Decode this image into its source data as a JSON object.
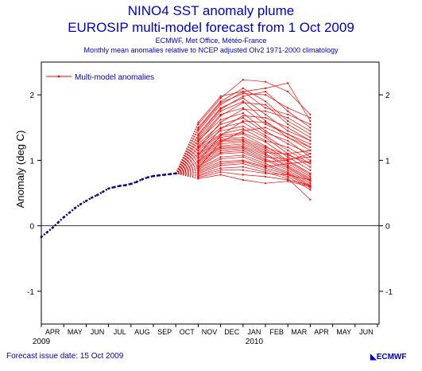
{
  "header": {
    "line1": "NINO4 SST anomaly plume",
    "line2": "EUROSIP  multi-model forecast from 1 Oct 2009",
    "line3": "ECMWF, Met Office, Météo-France",
    "line4": "Monthly mean anomalies relative to NCEP adjusted OIv2 1971-2000 climatology"
  },
  "footer": {
    "issue_date": "Forecast issue date: 15 Oct 2009",
    "logo": "ECMWF"
  },
  "colors": {
    "text": "#0000cc",
    "observed": "#000080",
    "forecast": "#ff0000",
    "axis": "#000000"
  },
  "chart_data": {
    "type": "line",
    "ylabel": "Anomaly (deg C)",
    "ylim": [
      -1.5,
      2.5
    ],
    "yticks": [
      -1,
      0,
      1,
      2
    ],
    "month_labels": [
      "APR",
      "MAY",
      "JUN",
      "JUL",
      "AUG",
      "SEP",
      "OCT",
      "NOV",
      "DEC",
      "JAN",
      "FEB",
      "MAR",
      "APR",
      "MAY",
      "JUN"
    ],
    "year_labels": [
      {
        "label": "2009",
        "month_index": 0
      },
      {
        "label": "2010",
        "month_index": 9.5
      }
    ],
    "xlim_months": [
      0,
      15.5
    ],
    "legend": {
      "label": "Multi-model anomalies",
      "position": "top-left"
    },
    "observed": {
      "x": [
        0,
        0.25,
        0.5,
        0.75,
        1,
        1.25,
        1.5,
        1.75,
        2,
        2.25,
        2.5,
        2.75,
        3,
        3.25,
        3.5,
        3.75,
        4,
        4.25,
        4.5,
        4.75,
        5,
        5.25,
        5.5,
        5.75,
        6
      ],
      "y": [
        -0.17,
        -0.1,
        -0.03,
        0.05,
        0.13,
        0.2,
        0.27,
        0.33,
        0.38,
        0.43,
        0.47,
        0.52,
        0.57,
        0.59,
        0.61,
        0.62,
        0.64,
        0.67,
        0.71,
        0.74,
        0.76,
        0.77,
        0.78,
        0.79,
        0.8
      ]
    },
    "forecast": {
      "start_x": 6,
      "start_y": 0.8,
      "x": [
        7,
        8,
        9,
        10,
        11,
        12
      ],
      "members": [
        [
          1.55,
          1.95,
          2.23,
          2.2,
          2.05,
          1.7
        ],
        [
          1.5,
          1.9,
          2.1,
          1.9,
          1.6,
          1.4
        ],
        [
          1.45,
          1.85,
          2.05,
          1.8,
          1.7,
          1.55
        ],
        [
          1.4,
          1.8,
          1.95,
          1.7,
          1.45,
          1.3
        ],
        [
          1.35,
          1.75,
          1.9,
          1.6,
          1.35,
          1.2
        ],
        [
          1.32,
          1.7,
          1.8,
          1.55,
          1.4,
          1.25
        ],
        [
          1.3,
          1.62,
          1.72,
          1.45,
          1.25,
          1.1
        ],
        [
          1.25,
          1.55,
          1.65,
          1.42,
          1.3,
          1.05
        ],
        [
          1.22,
          1.5,
          1.58,
          1.38,
          1.15,
          0.95
        ],
        [
          1.2,
          1.45,
          1.52,
          1.35,
          1.1,
          0.9
        ],
        [
          1.18,
          1.4,
          1.48,
          1.3,
          1.2,
          1.0
        ],
        [
          1.15,
          1.38,
          1.42,
          1.28,
          1.05,
          0.85
        ],
        [
          1.12,
          1.35,
          1.4,
          1.22,
          1.0,
          0.8
        ],
        [
          1.1,
          1.32,
          1.35,
          1.2,
          1.08,
          0.95
        ],
        [
          1.08,
          1.3,
          1.32,
          1.18,
          0.98,
          0.78
        ],
        [
          1.05,
          1.28,
          1.3,
          1.15,
          0.95,
          0.75
        ],
        [
          1.03,
          1.25,
          1.28,
          1.12,
          1.1,
          1.15
        ],
        [
          1.0,
          1.22,
          1.25,
          1.1,
          0.92,
          0.72
        ],
        [
          0.98,
          1.2,
          1.22,
          1.08,
          0.9,
          0.7
        ],
        [
          0.96,
          1.18,
          1.2,
          1.05,
          1.02,
          1.05
        ],
        [
          0.94,
          1.15,
          1.18,
          1.02,
          0.88,
          0.68
        ],
        [
          0.92,
          1.12,
          1.15,
          1.0,
          0.85,
          0.65
        ],
        [
          0.9,
          1.1,
          1.12,
          0.98,
          1.0,
          1.1
        ],
        [
          0.88,
          1.05,
          1.08,
          0.95,
          0.82,
          0.62
        ],
        [
          0.86,
          1.02,
          1.05,
          0.92,
          0.8,
          0.6
        ],
        [
          0.84,
          0.98,
          1.0,
          0.9,
          0.95,
          0.98
        ],
        [
          0.82,
          0.95,
          0.98,
          0.88,
          0.78,
          0.58
        ],
        [
          0.8,
          0.92,
          0.95,
          0.85,
          0.75,
          0.55
        ],
        [
          0.78,
          0.88,
          0.9,
          0.82,
          0.72,
          0.4
        ],
        [
          0.76,
          0.85,
          0.85,
          0.8,
          0.78,
          0.7
        ],
        [
          0.74,
          0.82,
          0.78,
          0.75,
          0.7,
          0.62
        ],
        [
          0.72,
          0.78,
          0.7,
          0.65,
          0.68,
          0.6
        ],
        [
          1.58,
          1.98,
          2.05,
          2.1,
          2.18,
          1.6
        ],
        [
          1.48,
          1.88,
          2.02,
          2.0,
          1.8,
          1.65
        ],
        [
          1.38,
          1.78,
          1.98,
          2.05,
          1.75,
          1.5
        ],
        [
          1.28,
          1.68,
          1.88,
          1.85,
          1.55,
          1.35
        ],
        [
          1.18,
          1.58,
          1.78,
          1.75,
          1.65,
          1.45
        ],
        [
          1.08,
          1.48,
          1.68,
          1.65,
          1.5,
          1.3
        ],
        [
          0.98,
          1.38,
          1.6,
          1.58,
          1.4,
          1.2
        ],
        [
          0.88,
          1.28,
          1.45,
          1.5,
          1.35,
          1.15
        ]
      ]
    }
  }
}
